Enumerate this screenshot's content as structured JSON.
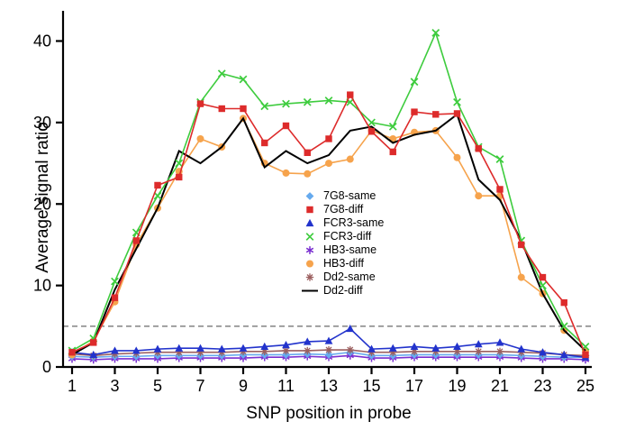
{
  "figure": {
    "ylabel": "Average signal ratio",
    "xlabel": "SNP position in probe"
  },
  "chart_data": {
    "type": "line",
    "title": "",
    "xlabel": "SNP position in probe",
    "ylabel": "Average signal ratio",
    "xlim": [
      0.5,
      25.5
    ],
    "ylim": [
      0,
      43.5
    ],
    "x_ticks": [
      1,
      3,
      5,
      7,
      9,
      11,
      13,
      15,
      17,
      19,
      21,
      23,
      25
    ],
    "y_ticks": [
      0,
      10,
      20,
      30,
      40
    ],
    "reference_line_y": 5,
    "grid": false,
    "legend_position": "center-right",
    "x": [
      1,
      2,
      3,
      4,
      5,
      6,
      7,
      8,
      9,
      10,
      11,
      12,
      13,
      14,
      15,
      16,
      17,
      18,
      19,
      20,
      21,
      22,
      23,
      24,
      25
    ],
    "series": [
      {
        "name": "7G8-same",
        "color": "#66aaee",
        "marker": "diamond",
        "values": [
          1.3,
          1.2,
          1.3,
          1.3,
          1.4,
          1.4,
          1.4,
          1.4,
          1.5,
          1.5,
          1.5,
          1.6,
          1.5,
          1.8,
          1.4,
          1.4,
          1.5,
          1.5,
          1.5,
          1.5,
          1.5,
          1.4,
          1.3,
          1.2,
          1.2
        ]
      },
      {
        "name": "7G8-diff",
        "color": "#dd2b2b",
        "marker": "square",
        "values": [
          1.8,
          3.0,
          8.5,
          15.5,
          22.3,
          23.3,
          32.3,
          31.7,
          31.7,
          27.5,
          29.6,
          26.3,
          28.0,
          33.4,
          28.9,
          26.4,
          31.3,
          31.0,
          31.1,
          26.8,
          21.8,
          15.0,
          11.0,
          7.9,
          1.5
        ]
      },
      {
        "name": "FCR3-same",
        "color": "#2233cc",
        "marker": "triangle",
        "values": [
          1.8,
          1.5,
          2.0,
          2.0,
          2.2,
          2.3,
          2.3,
          2.2,
          2.3,
          2.5,
          2.7,
          3.1,
          3.2,
          4.7,
          2.2,
          2.3,
          2.5,
          2.3,
          2.5,
          2.8,
          3.0,
          2.2,
          1.8,
          1.5,
          1.2
        ]
      },
      {
        "name": "FCR3-diff",
        "color": "#3ecc3e",
        "marker": "x",
        "values": [
          2.0,
          3.5,
          10.5,
          16.5,
          21.0,
          25.0,
          32.5,
          36.0,
          35.3,
          32.0,
          32.3,
          32.5,
          32.7,
          32.5,
          30.0,
          29.5,
          35.0,
          41.0,
          32.5,
          27.0,
          25.5,
          15.5,
          10.0,
          5.0,
          2.5
        ]
      },
      {
        "name": "HB3-same",
        "color": "#7a2fd0",
        "marker": "asterisk",
        "values": [
          1.0,
          0.9,
          1.0,
          1.0,
          1.0,
          1.1,
          1.1,
          1.1,
          1.1,
          1.2,
          1.2,
          1.3,
          1.2,
          1.4,
          1.1,
          1.1,
          1.2,
          1.2,
          1.2,
          1.2,
          1.2,
          1.1,
          1.0,
          1.0,
          0.9
        ]
      },
      {
        "name": "HB3-diff",
        "color": "#f6a34c",
        "marker": "circle",
        "values": [
          1.5,
          3.2,
          8.0,
          15.0,
          19.5,
          24.0,
          28.0,
          27.0,
          30.5,
          25.0,
          23.8,
          23.7,
          25.0,
          25.5,
          29.0,
          28.0,
          28.8,
          29.0,
          25.7,
          21.0,
          21.0,
          11.0,
          9.0,
          4.5,
          2.0
        ]
      },
      {
        "name": "Dd2-same",
        "color": "#9b5f5f",
        "marker": "star",
        "values": [
          1.6,
          1.4,
          1.6,
          1.7,
          1.8,
          1.8,
          1.8,
          1.8,
          1.9,
          1.9,
          2.0,
          2.0,
          2.1,
          2.1,
          1.8,
          1.8,
          1.9,
          1.9,
          1.9,
          1.9,
          1.9,
          1.8,
          1.7,
          1.5,
          1.4
        ]
      },
      {
        "name": "Dd2-diff",
        "color": "#000000",
        "marker": "none",
        "values": [
          1.5,
          3.0,
          9.5,
          14.5,
          19.5,
          26.5,
          25.0,
          27.0,
          30.5,
          24.5,
          26.5,
          25.0,
          26.0,
          29.0,
          29.5,
          27.5,
          28.5,
          29.0,
          31.0,
          23.0,
          20.5,
          15.5,
          9.0,
          4.5,
          2.0
        ]
      }
    ]
  }
}
